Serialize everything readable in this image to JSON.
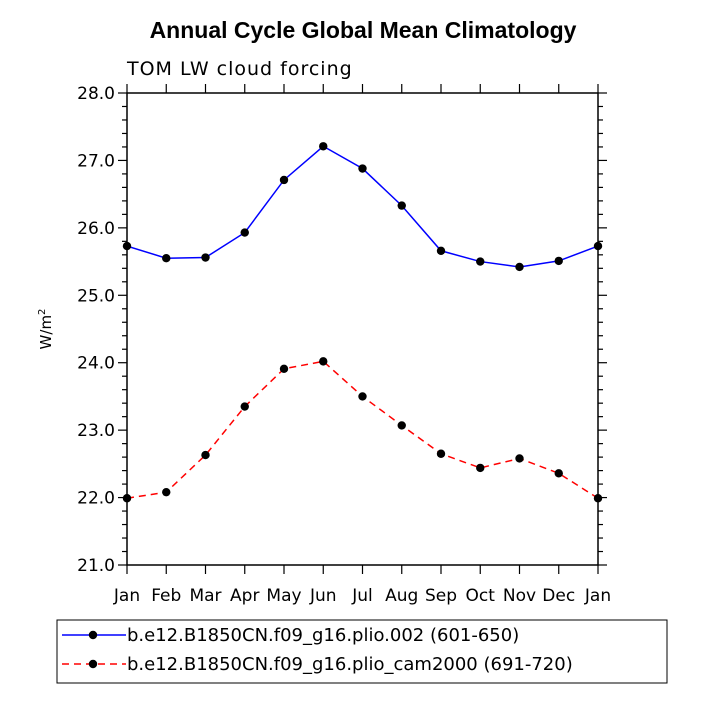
{
  "chart_data": {
    "type": "line",
    "title": "Annual Cycle Global Mean Climatology",
    "subtitle": "TOM LW cloud forcing",
    "ylabel": "W/m",
    "ylabel_sup": "2",
    "xlabel": "",
    "categories": [
      "Jan",
      "Feb",
      "Mar",
      "Apr",
      "May",
      "Jun",
      "Jul",
      "Aug",
      "Sep",
      "Oct",
      "Nov",
      "Dec",
      "Jan"
    ],
    "ylim": [
      21.0,
      28.0
    ],
    "yticks": [
      "21.0",
      "22.0",
      "23.0",
      "24.0",
      "25.0",
      "26.0",
      "27.0",
      "28.0"
    ],
    "series": [
      {
        "name": "b.e12.B1850CN.f09_g16.plio.002 (601-650)",
        "color": "#0000ff",
        "dash": "solid",
        "values": [
          25.73,
          25.55,
          25.56,
          25.93,
          26.71,
          27.21,
          26.88,
          26.33,
          25.66,
          25.5,
          25.42,
          25.51,
          25.73
        ]
      },
      {
        "name": "b.e12.B1850CN.f09_g16.plio_cam2000 (691-720)",
        "color": "#ff0000",
        "dash": "dashed",
        "values": [
          21.99,
          22.08,
          22.63,
          23.35,
          23.91,
          24.02,
          23.5,
          23.07,
          22.65,
          22.44,
          22.58,
          22.36,
          21.99
        ]
      }
    ]
  }
}
